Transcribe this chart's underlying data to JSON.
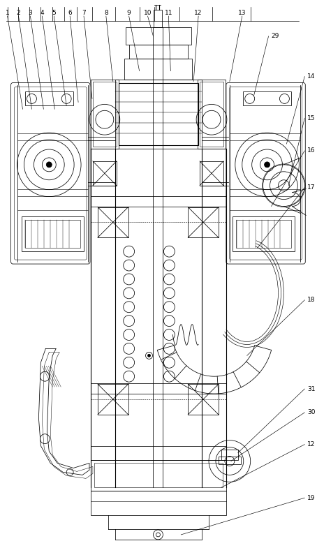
{
  "background_color": "#ffffff",
  "line_color": "#000000",
  "fig_width": 4.54,
  "fig_height": 7.85,
  "dpi": 100,
  "label_fontsize": 6.5
}
